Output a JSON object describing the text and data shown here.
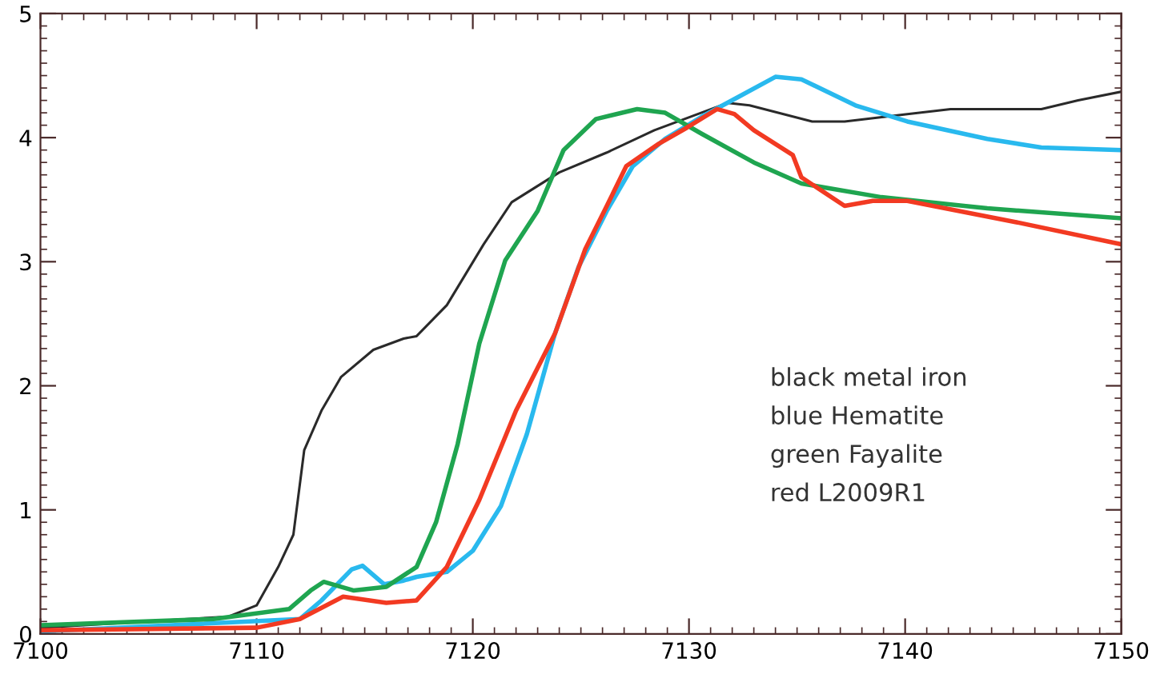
{
  "chart_data": {
    "type": "line",
    "xlim": [
      7100,
      7150
    ],
    "xticks": [
      7100,
      7110,
      7120,
      7130,
      7140,
      7150
    ],
    "ylim": [
      0,
      5
    ],
    "yticks": [
      0,
      1,
      2,
      3,
      4,
      5
    ],
    "grid": false,
    "legend": false,
    "marker": "none",
    "line_style": "solid",
    "annotations": [
      "black metal iron",
      "blue Hematite",
      "green Fayalite",
      "red L2009R1"
    ],
    "series": [
      {
        "color": "#2a2a2a",
        "x": [
          7100,
          7108.7,
          7110,
          7111,
          7111.7,
          7112.2,
          7113,
          7113.9,
          7115.4,
          7116.8,
          7117.4,
          7118.8,
          7120.5,
          7121.8,
          7124,
          7126.2,
          7128.4,
          7131.8,
          7132.8,
          7135.7,
          7137.2,
          7140.1,
          7142.1,
          7146.3,
          7148,
          7150
        ],
        "values": [
          0.05,
          0.14,
          0.23,
          0.54,
          0.8,
          1.48,
          1.8,
          2.07,
          2.29,
          2.38,
          2.4,
          2.65,
          3.14,
          3.48,
          3.72,
          3.88,
          4.06,
          4.28,
          4.26,
          4.13,
          4.13,
          4.19,
          4.23,
          4.23,
          4.3,
          4.37
        ]
      },
      {
        "color": "#29b9ee",
        "x": [
          7100,
          7112,
          7113,
          7114.4,
          7114.9,
          7115.9,
          7116.8,
          7117.4,
          7118.8,
          7120,
          7121.3,
          7122.5,
          7123.8,
          7124.9,
          7126.2,
          7127.4,
          7128.9,
          7130.6,
          7132.3,
          7134,
          7135.2,
          7137.7,
          7140.1,
          7143.8,
          7146.3,
          7150
        ],
        "values": [
          0.02,
          0.12,
          0.27,
          0.52,
          0.55,
          0.4,
          0.43,
          0.46,
          0.5,
          0.67,
          1.03,
          1.61,
          2.42,
          2.96,
          3.41,
          3.77,
          3.99,
          4.17,
          4.33,
          4.49,
          4.47,
          4.26,
          4.13,
          3.99,
          3.92,
          3.9
        ]
      },
      {
        "color": "#1fa550",
        "x": [
          7100,
          7108,
          7111.5,
          7112.5,
          7113.1,
          7114.5,
          7116,
          7117.4,
          7118.3,
          7119.3,
          7120.3,
          7121.5,
          7123,
          7124.2,
          7125.7,
          7127.6,
          7128.9,
          7130.6,
          7133,
          7135.2,
          7138.9,
          7143.8,
          7150
        ],
        "values": [
          0.07,
          0.12,
          0.2,
          0.35,
          0.42,
          0.35,
          0.38,
          0.54,
          0.9,
          1.53,
          2.34,
          3.01,
          3.41,
          3.9,
          4.15,
          4.23,
          4.2,
          4.03,
          3.8,
          3.63,
          3.52,
          3.43,
          3.35
        ]
      },
      {
        "color": "#f23a22",
        "x": [
          7100,
          7110,
          7112,
          7114,
          7116,
          7117.4,
          7118.8,
          7120.3,
          7122,
          7123.8,
          7125.2,
          7126.2,
          7127.1,
          7128.6,
          7129.9,
          7131.3,
          7132.1,
          7133,
          7134.8,
          7135.2,
          7137.2,
          7138.5,
          7140.1,
          7145.1,
          7150
        ],
        "values": [
          0.03,
          0.05,
          0.12,
          0.3,
          0.25,
          0.27,
          0.54,
          1.08,
          1.8,
          2.42,
          3.1,
          3.45,
          3.77,
          3.95,
          4.08,
          4.23,
          4.19,
          4.06,
          3.86,
          3.68,
          3.45,
          3.49,
          3.49,
          3.32,
          3.14
        ]
      }
    ]
  }
}
